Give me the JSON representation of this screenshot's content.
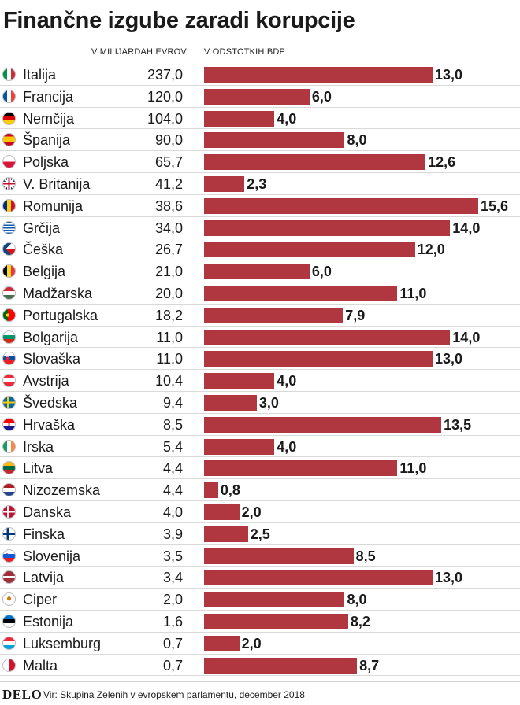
{
  "title": "Finančne izgube zaradi korupcije",
  "columns": {
    "value_header": "V MILIJARDAH EVROV",
    "percent_header": "V ODSTOTKIH BDP"
  },
  "footer": {
    "logo": "DELO",
    "source": "Vir: Skupina Zelenih v evropskem parlamentu, december 2018"
  },
  "colors": {
    "bar": "#b0363f"
  },
  "chart_data": {
    "type": "bar",
    "orientation": "horizontal",
    "title": "Finančne izgube zaradi korupcije",
    "xlim": [
      0,
      16
    ],
    "series": [
      {
        "name": "V MILIJARDAH EVROV",
        "display": "table-column"
      },
      {
        "name": "V ODSTOTKIH BDP",
        "display": "bars"
      }
    ],
    "rows": [
      {
        "country": "Italija",
        "flag": "italy-flag",
        "billion_eur": "237,0",
        "gdp_pct": 13.0,
        "gdp_label": "13,0"
      },
      {
        "country": "Francija",
        "flag": "france-flag",
        "billion_eur": "120,0",
        "gdp_pct": 6.0,
        "gdp_label": "6,0"
      },
      {
        "country": "Nemčija",
        "flag": "germany-flag",
        "billion_eur": "104,0",
        "gdp_pct": 4.0,
        "gdp_label": "4,0"
      },
      {
        "country": "Španija",
        "flag": "spain-flag",
        "billion_eur": "90,0",
        "gdp_pct": 8.0,
        "gdp_label": "8,0"
      },
      {
        "country": "Poljska",
        "flag": "poland-flag",
        "billion_eur": "65,7",
        "gdp_pct": 12.6,
        "gdp_label": "12,6"
      },
      {
        "country": "V. Britanija",
        "flag": "uk-flag",
        "billion_eur": "41,2",
        "gdp_pct": 2.3,
        "gdp_label": "2,3"
      },
      {
        "country": "Romunija",
        "flag": "romania-flag",
        "billion_eur": "38,6",
        "gdp_pct": 15.6,
        "gdp_label": "15,6"
      },
      {
        "country": "Grčija",
        "flag": "greece-flag",
        "billion_eur": "34,0",
        "gdp_pct": 14.0,
        "gdp_label": "14,0"
      },
      {
        "country": "Češka",
        "flag": "czechia-flag",
        "billion_eur": "26,7",
        "gdp_pct": 12.0,
        "gdp_label": "12,0"
      },
      {
        "country": "Belgija",
        "flag": "belgium-flag",
        "billion_eur": "21,0",
        "gdp_pct": 6.0,
        "gdp_label": "6,0"
      },
      {
        "country": "Madžarska",
        "flag": "hungary-flag",
        "billion_eur": "20,0",
        "gdp_pct": 11.0,
        "gdp_label": "11,0"
      },
      {
        "country": "Portugalska",
        "flag": "portugal-flag",
        "billion_eur": "18,2",
        "gdp_pct": 7.9,
        "gdp_label": "7,9"
      },
      {
        "country": "Bolgarija",
        "flag": "bulgaria-flag",
        "billion_eur": "11,0",
        "gdp_pct": 14.0,
        "gdp_label": "14,0"
      },
      {
        "country": "Slovaška",
        "flag": "slovakia-flag",
        "billion_eur": "11,0",
        "gdp_pct": 13.0,
        "gdp_label": "13,0"
      },
      {
        "country": "Avstrija",
        "flag": "austria-flag",
        "billion_eur": "10,4",
        "gdp_pct": 4.0,
        "gdp_label": "4,0"
      },
      {
        "country": "Švedska",
        "flag": "sweden-flag",
        "billion_eur": "9,4",
        "gdp_pct": 3.0,
        "gdp_label": "3,0"
      },
      {
        "country": "Hrvaška",
        "flag": "croatia-flag",
        "billion_eur": "8,5",
        "gdp_pct": 13.5,
        "gdp_label": "13,5"
      },
      {
        "country": "Irska",
        "flag": "ireland-flag",
        "billion_eur": "5,4",
        "gdp_pct": 4.0,
        "gdp_label": "4,0"
      },
      {
        "country": "Litva",
        "flag": "lithuania-flag",
        "billion_eur": "4,4",
        "gdp_pct": 11.0,
        "gdp_label": "11,0"
      },
      {
        "country": "Nizozemska",
        "flag": "netherlands-flag",
        "billion_eur": "4,4",
        "gdp_pct": 0.8,
        "gdp_label": "0,8"
      },
      {
        "country": "Danska",
        "flag": "denmark-flag",
        "billion_eur": "4,0",
        "gdp_pct": 2.0,
        "gdp_label": "2,0"
      },
      {
        "country": "Finska",
        "flag": "finland-flag",
        "billion_eur": "3,9",
        "gdp_pct": 2.5,
        "gdp_label": "2,5"
      },
      {
        "country": "Slovenija",
        "flag": "slovenia-flag",
        "billion_eur": "3,5",
        "gdp_pct": 8.5,
        "gdp_label": "8,5"
      },
      {
        "country": "Latvija",
        "flag": "latvia-flag",
        "billion_eur": "3,4",
        "gdp_pct": 13.0,
        "gdp_label": "13,0"
      },
      {
        "country": "Ciper",
        "flag": "cyprus-flag",
        "billion_eur": "2,0",
        "gdp_pct": 8.0,
        "gdp_label": "8,0"
      },
      {
        "country": "Estonija",
        "flag": "estonia-flag",
        "billion_eur": "1,6",
        "gdp_pct": 8.2,
        "gdp_label": "8,2"
      },
      {
        "country": "Luksemburg",
        "flag": "luxembourg-flag",
        "billion_eur": "0,7",
        "gdp_pct": 2.0,
        "gdp_label": "2,0"
      },
      {
        "country": "Malta",
        "flag": "malta-flag",
        "billion_eur": "0,7",
        "gdp_pct": 8.7,
        "gdp_label": "8,7"
      }
    ]
  }
}
